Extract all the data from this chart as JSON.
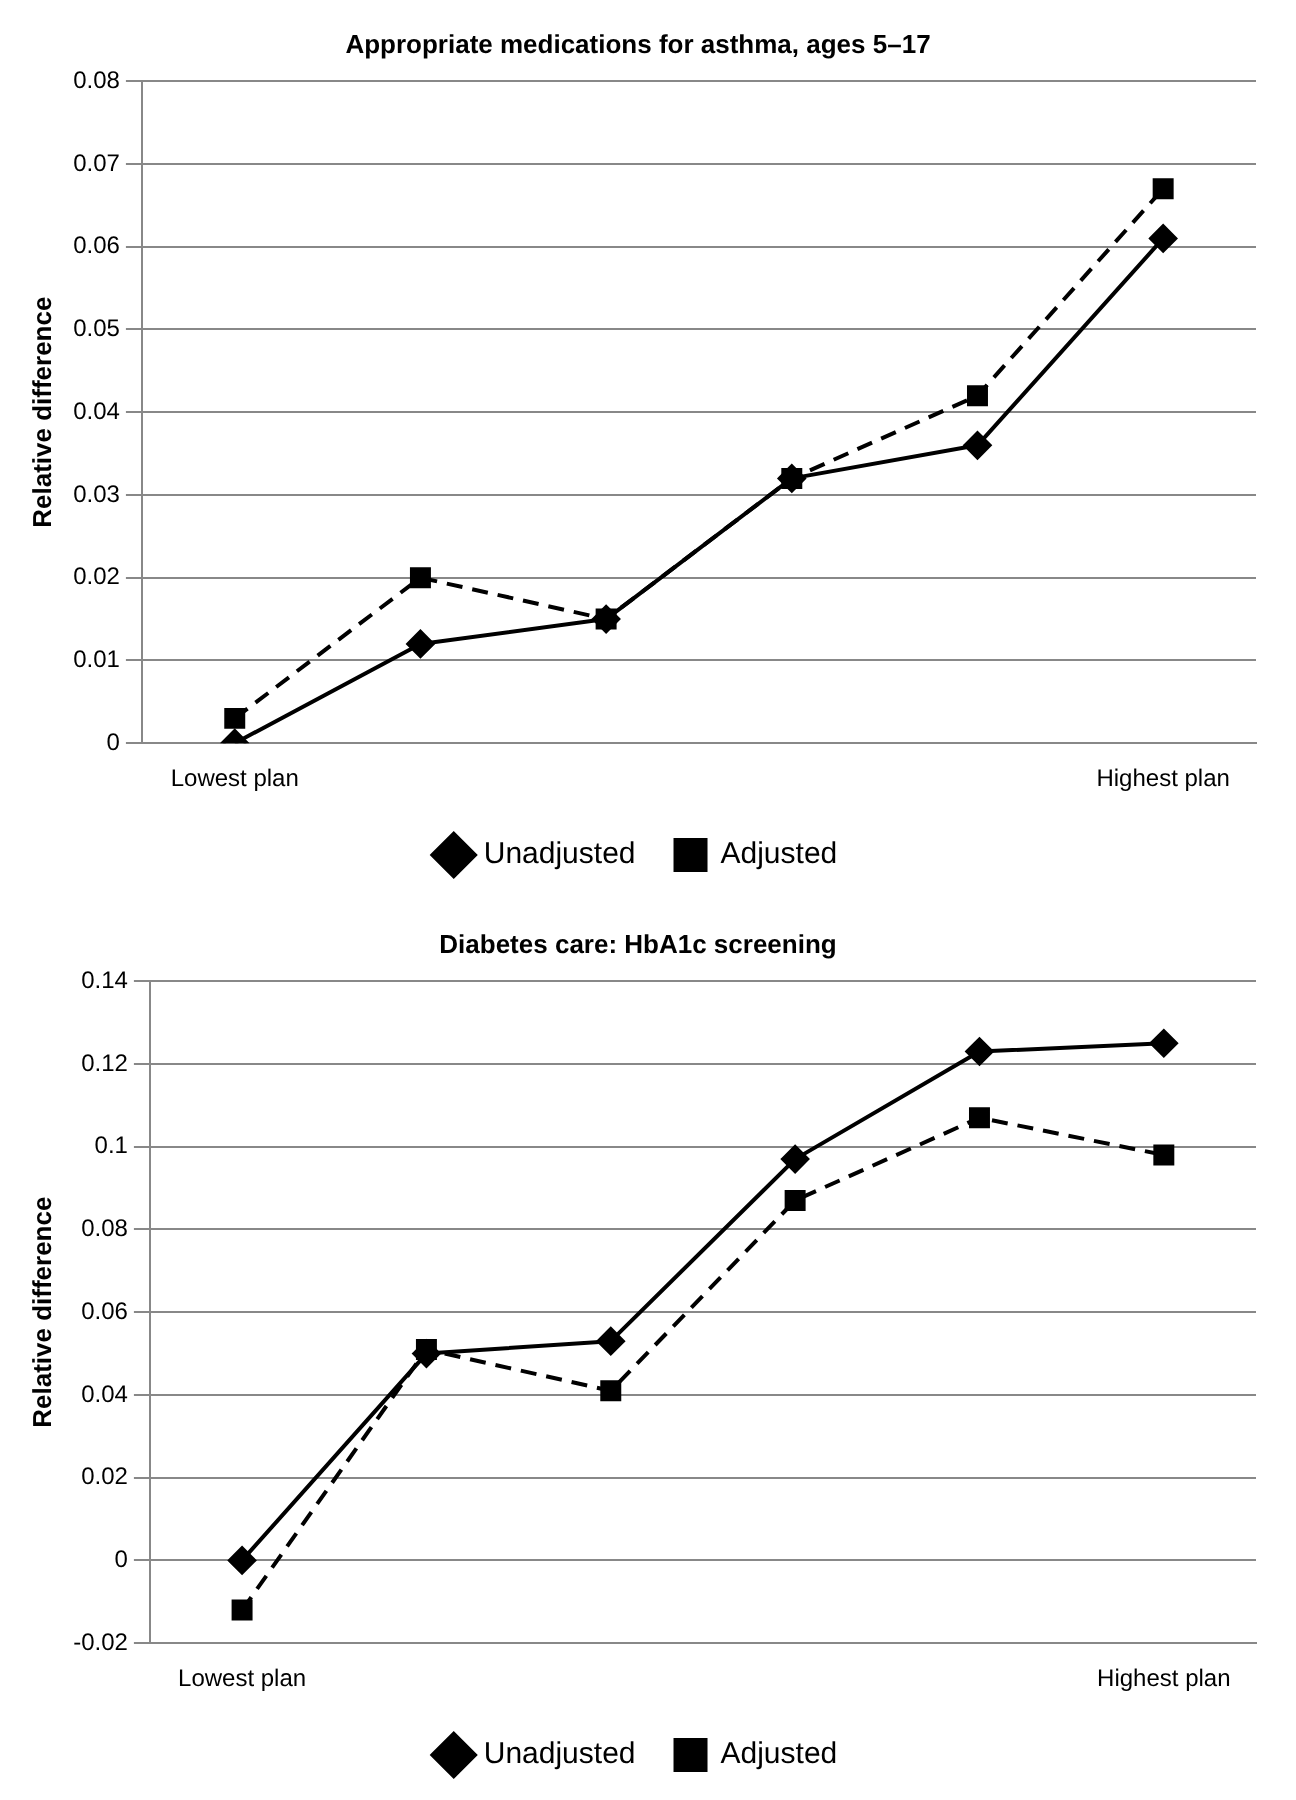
{
  "chart_data": [
    {
      "type": "line",
      "title": "Appropriate medications for asthma, ages 5–17",
      "ylabel": "Relative difference",
      "categories": [
        "Lowest plan",
        null,
        null,
        null,
        null,
        "Highest plan"
      ],
      "series": [
        {
          "name": "Unadjusted",
          "color": "#000000",
          "marker": "diamond",
          "line_style": "solid",
          "values": [
            0,
            0.012,
            0.015,
            0.032,
            0.036,
            0.061
          ]
        },
        {
          "name": "Adjusted",
          "color": "#000000",
          "marker": "square",
          "line_style": "dashed",
          "values": [
            0.003,
            0.02,
            0.015,
            0.032,
            0.042,
            0.067
          ]
        }
      ],
      "ylim": [
        0,
        0.08
      ],
      "yticks": [
        0,
        0.01,
        0.02,
        0.03,
        0.04,
        0.05,
        0.06,
        0.07,
        0.08
      ],
      "grid": "y",
      "legend": "bottom"
    },
    {
      "type": "line",
      "title": "Diabetes care: HbA1c screening",
      "ylabel": "Relative difference",
      "categories": [
        "Lowest plan",
        null,
        null,
        null,
        null,
        "Highest plan"
      ],
      "series": [
        {
          "name": "Unadjusted",
          "color": "#000000",
          "marker": "diamond",
          "line_style": "solid",
          "values": [
            0,
            0.05,
            0.053,
            0.097,
            0.123,
            0.125
          ]
        },
        {
          "name": "Adjusted",
          "color": "#000000",
          "marker": "square",
          "line_style": "dashed",
          "values": [
            -0.012,
            0.051,
            0.041,
            0.087,
            0.107,
            0.098
          ]
        }
      ],
      "ylim": [
        -0.02,
        0.14
      ],
      "yticks": [
        -0.02,
        0,
        0.02,
        0.04,
        0.06,
        0.08,
        0.1,
        0.12,
        0.14
      ],
      "grid": "y",
      "legend": "bottom"
    }
  ]
}
